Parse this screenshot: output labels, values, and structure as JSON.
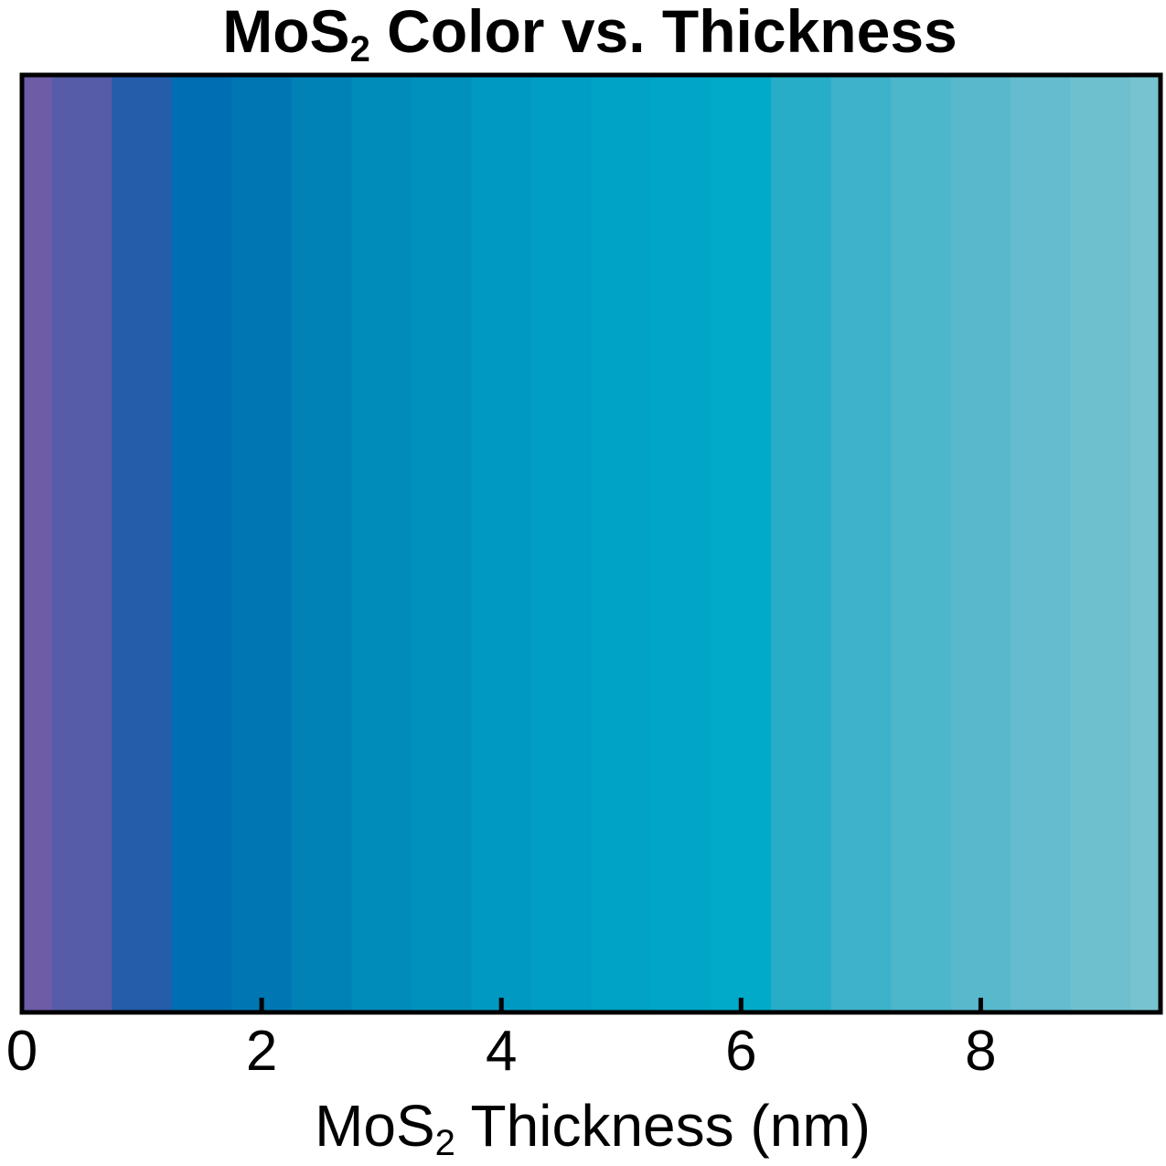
{
  "chart_data": {
    "type": "heatmap",
    "title": {
      "prefix": "MoS",
      "subscript": "2",
      "suffix": " Color vs. Thickness"
    },
    "xlabel": {
      "prefix": "MoS",
      "subscript": "2",
      "suffix": " Thickness (nm)"
    },
    "ylabel": "",
    "xlim": [
      0,
      9.5
    ],
    "x_ticks": [
      0,
      2,
      4,
      6,
      8
    ],
    "x_tick_labels": [
      "0",
      "2",
      "4",
      "6",
      "8"
    ],
    "y_axis_visible": false,
    "grid": false,
    "legend": "none",
    "bands": [
      {
        "x_start": 0.0,
        "x_end": 0.25,
        "color": "#6e5ca6"
      },
      {
        "x_start": 0.25,
        "x_end": 0.75,
        "color": "#565ca8"
      },
      {
        "x_start": 0.75,
        "x_end": 1.25,
        "color": "#255dab"
      },
      {
        "x_start": 1.25,
        "x_end": 1.75,
        "color": "#006eb2"
      },
      {
        "x_start": 1.75,
        "x_end": 2.25,
        "color": "#0077b3"
      },
      {
        "x_start": 2.25,
        "x_end": 2.75,
        "color": "#0082b6"
      },
      {
        "x_start": 2.75,
        "x_end": 3.25,
        "color": "#008cba"
      },
      {
        "x_start": 3.25,
        "x_end": 3.75,
        "color": "#0092bd"
      },
      {
        "x_start": 3.75,
        "x_end": 4.25,
        "color": "#0099c1"
      },
      {
        "x_start": 4.25,
        "x_end": 4.75,
        "color": "#009ec4"
      },
      {
        "x_start": 4.75,
        "x_end": 5.25,
        "color": "#00a2c5"
      },
      {
        "x_start": 5.25,
        "x_end": 5.75,
        "color": "#00a6c7"
      },
      {
        "x_start": 5.75,
        "x_end": 6.25,
        "color": "#00aac8"
      },
      {
        "x_start": 6.25,
        "x_end": 6.75,
        "color": "#27adc8"
      },
      {
        "x_start": 6.75,
        "x_end": 7.25,
        "color": "#3db2ca"
      },
      {
        "x_start": 7.25,
        "x_end": 7.75,
        "color": "#4cb6cb"
      },
      {
        "x_start": 7.75,
        "x_end": 8.25,
        "color": "#58b9cc"
      },
      {
        "x_start": 8.25,
        "x_end": 8.75,
        "color": "#64bcce"
      },
      {
        "x_start": 8.75,
        "x_end": 9.25,
        "color": "#6ec0cf"
      },
      {
        "x_start": 9.25,
        "x_end": 9.5,
        "color": "#78c3d0"
      }
    ]
  },
  "colors": {
    "axis": "#000000",
    "background": "#ffffff"
  }
}
